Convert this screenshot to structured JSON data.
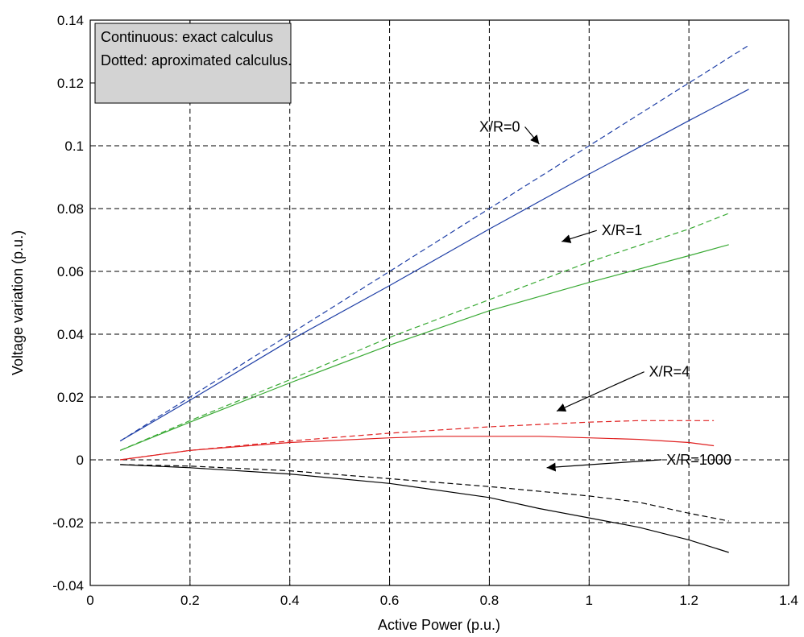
{
  "chart_data": {
    "type": "line",
    "xlabel": "Active Power (p.u.)",
    "ylabel": "Voltage variation (p.u.)",
    "xlim": [
      0,
      1.4
    ],
    "ylim": [
      -0.04,
      0.14
    ],
    "xticks": [
      "0",
      "0.2",
      "0.4",
      "0.6",
      "0.8",
      "1",
      "1.2",
      "1.4"
    ],
    "yticks": [
      "-0.04",
      "-0.02",
      "0",
      "0.02",
      "0.04",
      "0.06",
      "0.08",
      "0.1",
      "0.12",
      "0.14"
    ],
    "grid": true,
    "legend_box": {
      "position": "top-left",
      "lines": [
        "Continuous: exact calculus",
        "Dotted: aproximated calculus."
      ]
    },
    "series": [
      {
        "color": "#1f3fa6",
        "dash": false,
        "x": [
          0.06,
          0.2,
          0.4,
          0.6,
          0.8,
          1.0,
          1.2,
          1.32
        ],
        "y": [
          0.006,
          0.019,
          0.038,
          0.0555,
          0.0735,
          0.091,
          0.108,
          0.118
        ]
      },
      {
        "color": "#1f3fa6",
        "dash": true,
        "x": [
          0.06,
          0.2,
          0.4,
          0.6,
          0.8,
          1.0,
          1.2,
          1.32
        ],
        "y": [
          0.006,
          0.02,
          0.04,
          0.06,
          0.08,
          0.1,
          0.12,
          0.132
        ]
      },
      {
        "color": "#3aaa35",
        "dash": false,
        "x": [
          0.06,
          0.2,
          0.4,
          0.6,
          0.8,
          1.0,
          1.2,
          1.28
        ],
        "y": [
          0.003,
          0.012,
          0.0245,
          0.0365,
          0.0475,
          0.0565,
          0.065,
          0.0685
        ]
      },
      {
        "color": "#3aaa35",
        "dash": true,
        "x": [
          0.06,
          0.2,
          0.4,
          0.6,
          0.8,
          1.0,
          1.2,
          1.28
        ],
        "y": [
          0.003,
          0.0125,
          0.0255,
          0.039,
          0.051,
          0.063,
          0.0735,
          0.0785
        ]
      },
      {
        "color": "#e02020",
        "dash": false,
        "x": [
          0.06,
          0.2,
          0.4,
          0.6,
          0.7,
          0.8,
          0.9,
          1.0,
          1.1,
          1.2,
          1.25
        ],
        "y": [
          0.0,
          0.003,
          0.0055,
          0.007,
          0.0075,
          0.0075,
          0.0075,
          0.007,
          0.0065,
          0.0055,
          0.0045
        ]
      },
      {
        "color": "#e02020",
        "dash": true,
        "x": [
          0.06,
          0.2,
          0.4,
          0.6,
          0.8,
          1.0,
          1.1,
          1.2,
          1.25
        ],
        "y": [
          0.0,
          0.003,
          0.006,
          0.0085,
          0.0105,
          0.012,
          0.0125,
          0.0125,
          0.0125
        ]
      },
      {
        "color": "#000000",
        "dash": false,
        "x": [
          0.06,
          0.2,
          0.4,
          0.6,
          0.8,
          0.9,
          1.0,
          1.1,
          1.2,
          1.28
        ],
        "y": [
          -0.0015,
          -0.0025,
          -0.0045,
          -0.0075,
          -0.012,
          -0.0155,
          -0.0185,
          -0.0215,
          -0.0255,
          -0.0295
        ]
      },
      {
        "color": "#000000",
        "dash": true,
        "x": [
          0.06,
          0.2,
          0.4,
          0.6,
          0.8,
          1.0,
          1.1,
          1.2,
          1.28
        ],
        "y": [
          -0.0015,
          -0.002,
          -0.0035,
          -0.006,
          -0.0085,
          -0.0115,
          -0.0135,
          -0.017,
          -0.0195
        ]
      }
    ],
    "annotations": [
      {
        "text": "X/R=0",
        "tx": 0.78,
        "ty": 0.1045,
        "ax": 0.9,
        "ay": 0.1005
      },
      {
        "text": "X/R=1",
        "tx": 1.025,
        "ty": 0.0715,
        "ax": 0.945,
        "ay": 0.0695
      },
      {
        "text": "X/R=4",
        "tx": 1.12,
        "ty": 0.0265,
        "ax": 0.935,
        "ay": 0.0155
      },
      {
        "text": "X/R=1000",
        "tx": 1.155,
        "ty": -0.0015,
        "ax": 0.915,
        "ay": -0.0025
      }
    ]
  }
}
